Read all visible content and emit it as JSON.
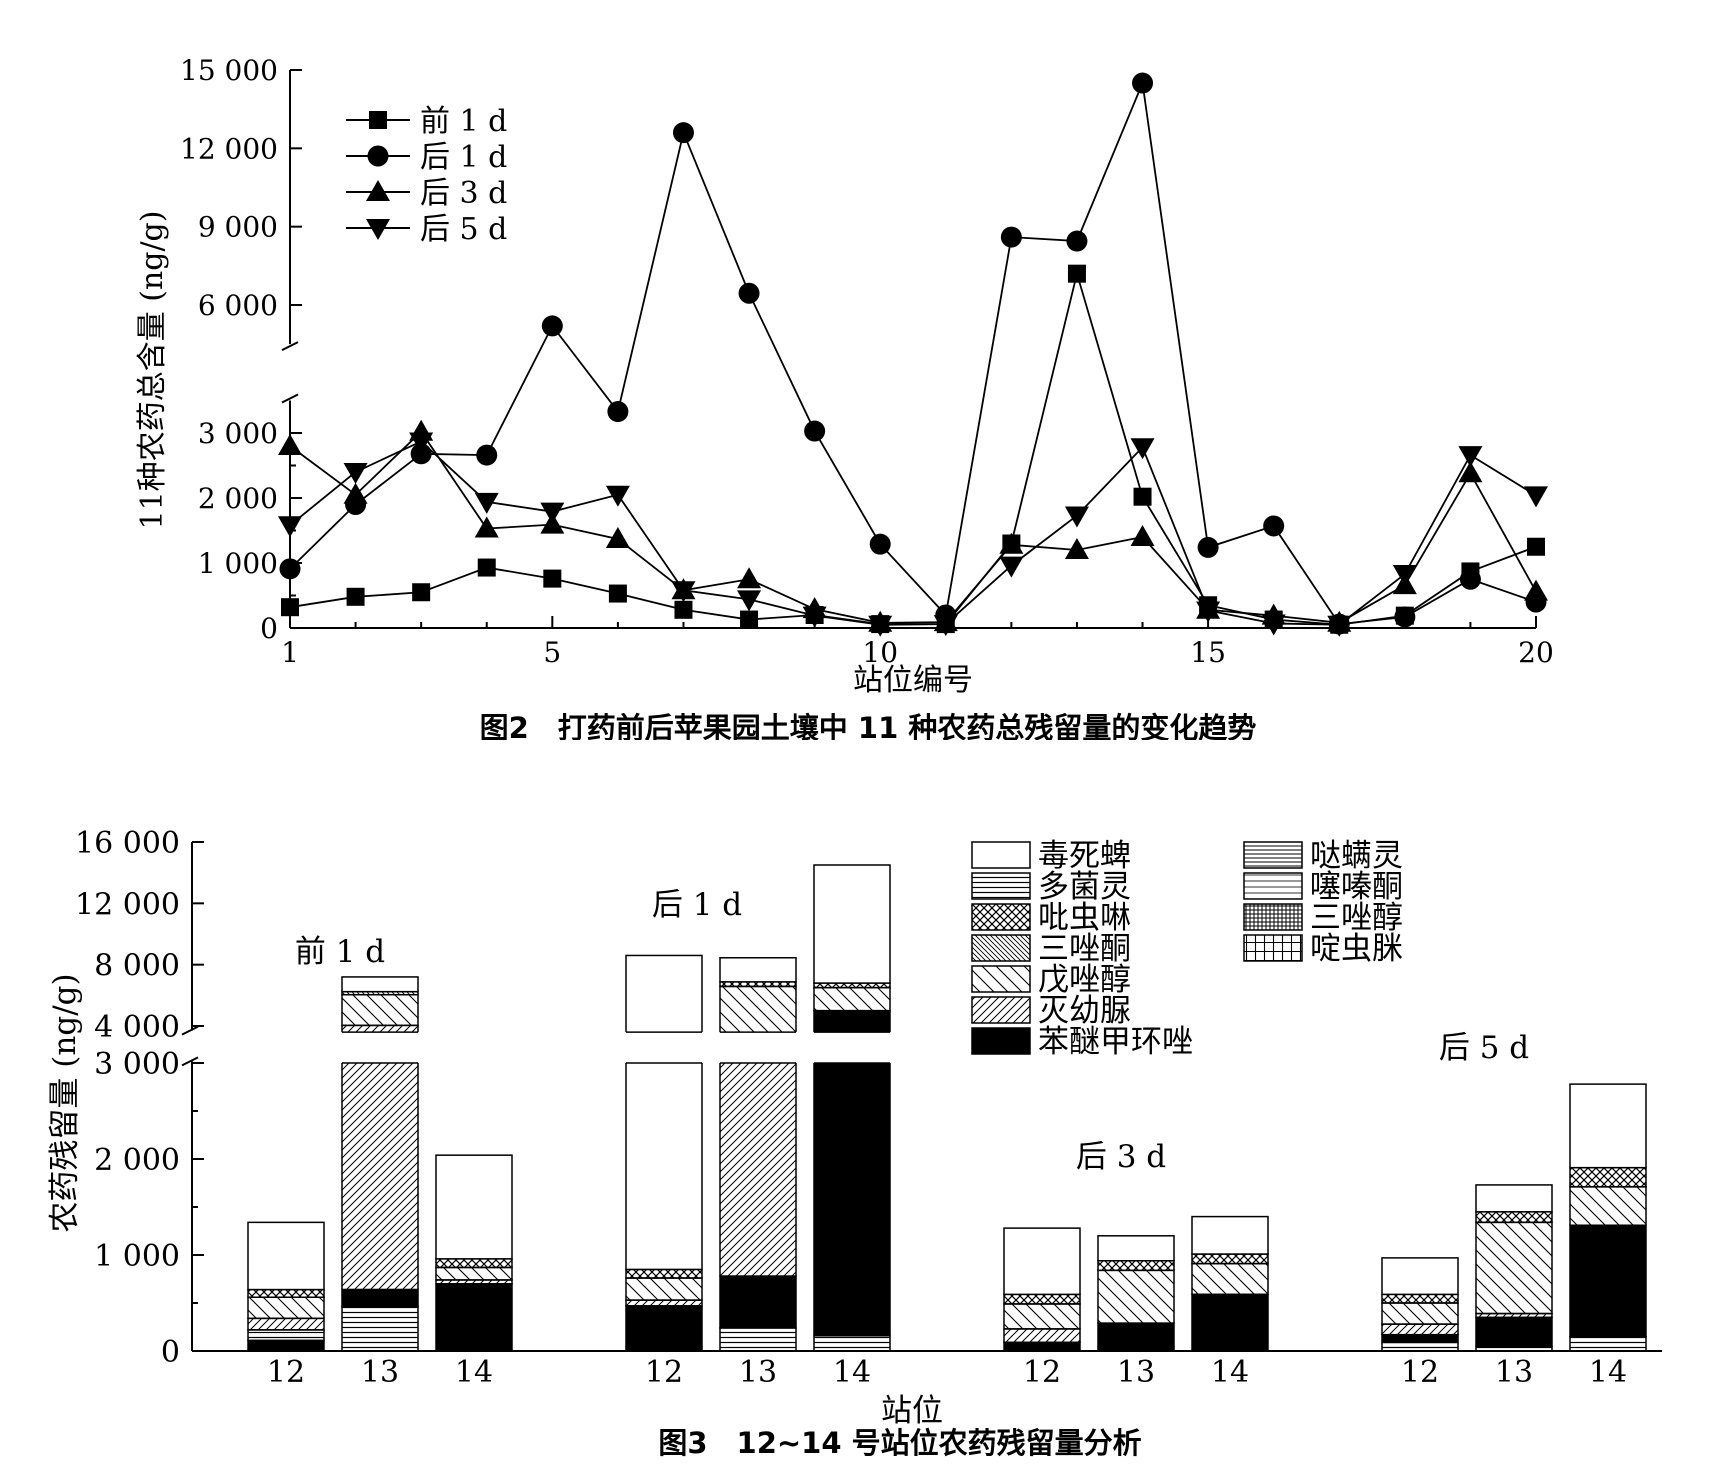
{
  "fig2": {
    "caption": "图2　打药前后苹果园土壤中 11 种农药总残留量的变化趋势",
    "chart_data": {
      "type": "line",
      "xlabel": "站位编号",
      "ylabel": "11种农药总含量 (ng/g)",
      "x": [
        1,
        2,
        3,
        4,
        5,
        6,
        7,
        8,
        9,
        10,
        11,
        12,
        13,
        14,
        15,
        16,
        17,
        18,
        19,
        20
      ],
      "xlim": [
        1,
        20
      ],
      "xticks": [
        1,
        5,
        10,
        15,
        20
      ],
      "xtick_labels": [
        "1",
        "5",
        "10",
        "15",
        "20"
      ],
      "ytick_labels": [
        "0",
        "1 000",
        "2 000",
        "3 000",
        "6 000",
        "9 000",
        "12 000",
        "15 000"
      ],
      "y_axis_break": [
        3500,
        4500
      ],
      "legend_position": "top-left",
      "series": [
        {
          "name": "前 1 d",
          "marker": "square",
          "values": [
            320,
            480,
            550,
            930,
            760,
            530,
            280,
            130,
            200,
            60,
            60,
            1300,
            7200,
            2020,
            350,
            130,
            50,
            190,
            870,
            1250
          ]
        },
        {
          "name": "后 1 d",
          "marker": "circle",
          "values": [
            910,
            1900,
            2680,
            2660,
            5200,
            3330,
            12600,
            6450,
            3030,
            1290,
            200,
            8600,
            8450,
            14500,
            1240,
            1570,
            60,
            170,
            750,
            400
          ]
        },
        {
          "name": "后 3 d",
          "marker": "triangle-up",
          "values": [
            2800,
            2050,
            3020,
            1530,
            1590,
            1370,
            580,
            750,
            290,
            80,
            90,
            1280,
            1200,
            1400,
            280,
            190,
            80,
            660,
            2380,
            560
          ]
        },
        {
          "name": "后 5 d",
          "marker": "triangle-down",
          "values": [
            1580,
            2400,
            2870,
            1940,
            1790,
            2050,
            580,
            440,
            190,
            50,
            60,
            960,
            1730,
            2780,
            270,
            70,
            50,
            830,
            2660,
            2040
          ]
        }
      ]
    }
  },
  "fig3": {
    "caption": "图3　12~14 号站位农药残留量分析",
    "chart_data": {
      "type": "bar",
      "stacked": true,
      "xlabel": "站位",
      "ylabel": "农药残留量 (ng/g)",
      "ytick_labels": [
        "0",
        "1 000",
        "2 000",
        "3 000",
        "4 000",
        "8 000",
        "12 000",
        "16 000"
      ],
      "y_axis_break": [
        3000,
        3600
      ],
      "legend_position": "top-right",
      "components": [
        "毒死蜱",
        "多菌灵",
        "吡虫啉",
        "三唑酮",
        "戊唑醇",
        "灭幼脲",
        "苯醚甲环唑",
        "哒螨灵",
        "噻嗪酮",
        "三唑醇",
        "啶虫脒"
      ],
      "groups": [
        {
          "label": "前 1 d",
          "bars": [
            {
              "station": "12",
              "total": 1340,
              "segments": [
                {
                  "name": "苯醚甲环唑",
                  "value": 110
                },
                {
                  "name": "多菌灵",
                  "value": 110
                },
                {
                  "name": "灭幼脲",
                  "value": 120
                },
                {
                  "name": "戊唑醇",
                  "value": 220
                },
                {
                  "name": "吡虫啉",
                  "value": 80
                },
                {
                  "name": "毒死蜱",
                  "value": 700
                }
              ]
            },
            {
              "station": "13",
              "total": 7200,
              "segments": [
                {
                  "name": "多菌灵",
                  "value": 460
                },
                {
                  "name": "苯醚甲环唑",
                  "value": 180
                },
                {
                  "name": "灭幼脲",
                  "value": 3400
                },
                {
                  "name": "戊唑醇",
                  "value": 2000
                },
                {
                  "name": "三唑酮",
                  "value": 200
                },
                {
                  "name": "毒死蜱",
                  "value": 960
                }
              ]
            },
            {
              "station": "14",
              "total": 2040,
              "segments": [
                {
                  "name": "苯醚甲环唑",
                  "value": 700
                },
                {
                  "name": "灭幼脲",
                  "value": 40
                },
                {
                  "name": "戊唑醇",
                  "value": 130
                },
                {
                  "name": "吡虫啉",
                  "value": 90
                },
                {
                  "name": "毒死蜱",
                  "value": 1080
                }
              ]
            }
          ]
        },
        {
          "label": "后 1 d",
          "bars": [
            {
              "station": "12",
              "total": 8600,
              "segments": [
                {
                  "name": "苯醚甲环唑",
                  "value": 470
                },
                {
                  "name": "灭幼脲",
                  "value": 60
                },
                {
                  "name": "戊唑醇",
                  "value": 230
                },
                {
                  "name": "吡虫啉",
                  "value": 90
                },
                {
                  "name": "毒死蜱",
                  "value": 7750
                }
              ]
            },
            {
              "station": "13",
              "total": 8450,
              "segments": [
                {
                  "name": "多菌灵",
                  "value": 240
                },
                {
                  "name": "苯醚甲环唑",
                  "value": 540
                },
                {
                  "name": "灭幼脲",
                  "value": 2700
                },
                {
                  "name": "戊唑醇",
                  "value": 3100
                },
                {
                  "name": "吡虫啉",
                  "value": 300
                },
                {
                  "name": "毒死蜱",
                  "value": 1570
                }
              ]
            },
            {
              "station": "14",
              "total": 14500,
              "segments": [
                {
                  "name": "多菌灵",
                  "value": 160
                },
                {
                  "name": "苯醚甲环唑",
                  "value": 4840
                },
                {
                  "name": "戊唑醇",
                  "value": 1500
                },
                {
                  "name": "吡虫啉",
                  "value": 300
                },
                {
                  "name": "毒死蜱",
                  "value": 7700
                }
              ]
            }
          ]
        },
        {
          "label": "后 3 d",
          "bars": [
            {
              "station": "12",
              "total": 1280,
              "segments": [
                {
                  "name": "苯醚甲环唑",
                  "value": 90
                },
                {
                  "name": "灭幼脲",
                  "value": 140
                },
                {
                  "name": "戊唑醇",
                  "value": 260
                },
                {
                  "name": "吡虫啉",
                  "value": 100
                },
                {
                  "name": "毒死蜱",
                  "value": 690
                }
              ]
            },
            {
              "station": "13",
              "total": 1200,
              "segments": [
                {
                  "name": "苯醚甲环唑",
                  "value": 290
                },
                {
                  "name": "戊唑醇",
                  "value": 550
                },
                {
                  "name": "吡虫啉",
                  "value": 100
                },
                {
                  "name": "毒死蜱",
                  "value": 260
                }
              ]
            },
            {
              "station": "14",
              "total": 1400,
              "segments": [
                {
                  "name": "苯醚甲环唑",
                  "value": 590
                },
                {
                  "name": "戊唑醇",
                  "value": 320
                },
                {
                  "name": "吡虫啉",
                  "value": 100
                },
                {
                  "name": "毒死蜱",
                  "value": 390
                }
              ]
            }
          ]
        },
        {
          "label": "后 5 d",
          "bars": [
            {
              "station": "12",
              "total": 970,
              "segments": [
                {
                  "name": "多菌灵",
                  "value": 90
                },
                {
                  "name": "苯醚甲环唑",
                  "value": 80
                },
                {
                  "name": "灭幼脲",
                  "value": 110
                },
                {
                  "name": "戊唑醇",
                  "value": 220
                },
                {
                  "name": "吡虫啉",
                  "value": 90
                },
                {
                  "name": "毒死蜱",
                  "value": 380
                }
              ]
            },
            {
              "station": "13",
              "total": 1730,
              "segments": [
                {
                  "name": "多菌灵",
                  "value": 50
                },
                {
                  "name": "苯醚甲环唑",
                  "value": 300
                },
                {
                  "name": "灭幼脲",
                  "value": 40
                },
                {
                  "name": "戊唑醇",
                  "value": 950
                },
                {
                  "name": "吡虫啉",
                  "value": 110
                },
                {
                  "name": "毒死蜱",
                  "value": 280
                }
              ]
            },
            {
              "station": "14",
              "total": 2780,
              "segments": [
                {
                  "name": "多菌灵",
                  "value": 150
                },
                {
                  "name": "苯醚甲环唑",
                  "value": 1160
                },
                {
                  "name": "戊唑醇",
                  "value": 400
                },
                {
                  "name": "吡虫啉",
                  "value": 200
                },
                {
                  "name": "毒死蜱",
                  "value": 870
                }
              ]
            }
          ]
        }
      ]
    }
  }
}
